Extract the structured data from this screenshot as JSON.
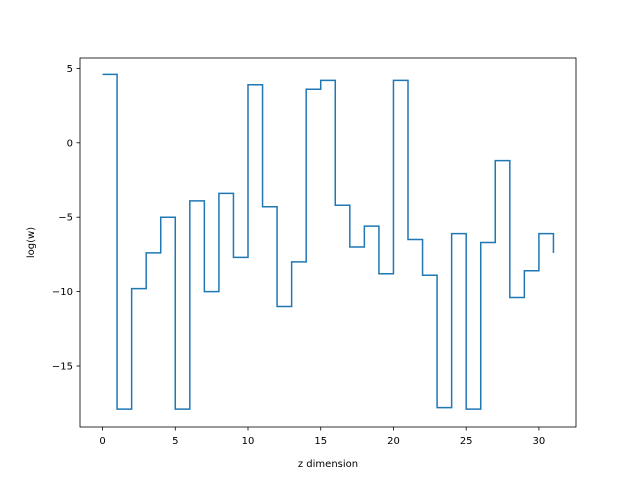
{
  "chart_data": {
    "type": "line",
    "drawstyle": "steps-post",
    "xlabel": "z dimension",
    "ylabel": "log(w)",
    "xlim": [
      -1.55,
      32.55
    ],
    "ylim": [
      -19.1,
      5.7
    ],
    "xticks": [
      0,
      5,
      10,
      15,
      20,
      25,
      30
    ],
    "xtick_labels": [
      "0",
      "5",
      "10",
      "15",
      "20",
      "25",
      "30"
    ],
    "yticks": [
      5,
      0,
      -5,
      -10,
      -15
    ],
    "ytick_labels": [
      "5",
      "0",
      "−5",
      "−10",
      "−15"
    ],
    "grid": false,
    "series": [
      {
        "color": "#1f77b4",
        "x": [
          0,
          1,
          2,
          3,
          4,
          5,
          6,
          7,
          8,
          9,
          10,
          11,
          12,
          13,
          14,
          15,
          16,
          17,
          18,
          19,
          20,
          21,
          22,
          23,
          24,
          25,
          26,
          27,
          28,
          29,
          30,
          31
        ],
        "values": [
          4.6,
          -17.9,
          -9.8,
          -7.4,
          -5.0,
          -17.9,
          -3.9,
          -10.0,
          -3.4,
          -7.7,
          3.9,
          -4.3,
          -11.0,
          -8.0,
          3.6,
          4.2,
          -4.2,
          -7.0,
          -5.6,
          -8.8,
          4.2,
          -6.5,
          -8.9,
          -17.8,
          -6.1,
          -17.9,
          -6.7,
          -1.2,
          -10.4,
          -8.6,
          -6.1,
          -7.4
        ]
      }
    ]
  }
}
